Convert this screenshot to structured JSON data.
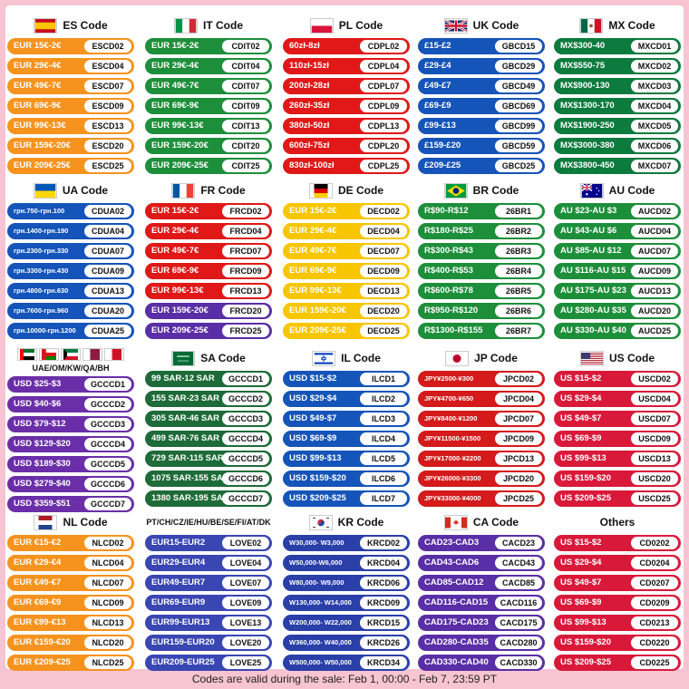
{
  "footer": "Codes are valid during the sale: Feb 1, 00:00 - Feb 7, 23:59 PT",
  "regions": [
    {
      "id": "es",
      "title": "ES Code",
      "color": "#f6931e",
      "flag": "flag-spain-icon",
      "rows": [
        [
          "EUR 15€-2€",
          "ESCD02"
        ],
        [
          "EUR 29€-4€",
          "ESCD04"
        ],
        [
          "EUR 49€-7€",
          "ESCD07"
        ],
        [
          "EUR 69€-9€",
          "ESCD09"
        ],
        [
          "EUR 99€-13€",
          "ESCD13"
        ],
        [
          "EUR 159€-20€",
          "ESCD20"
        ],
        [
          "EUR 209€-25€",
          "ESCD25"
        ]
      ]
    },
    {
      "id": "it",
      "title": "IT Code",
      "color": "#1d8f3a",
      "flag": "flag-italy-icon",
      "rows": [
        [
          "EUR 15€-2€",
          "CDIT02"
        ],
        [
          "EUR 29€-4€",
          "CDIT04"
        ],
        [
          "EUR 49€-7€",
          "CDIT07"
        ],
        [
          "EUR 69€-9€",
          "CDIT09"
        ],
        [
          "EUR 99€-13€",
          "CDIT13"
        ],
        [
          "EUR 159€-20€",
          "CDIT20"
        ],
        [
          "EUR 209€-25€",
          "CDIT25"
        ]
      ]
    },
    {
      "id": "pl",
      "title": "PL Code",
      "color": "#e01818",
      "flag": "flag-poland-icon",
      "rows": [
        [
          "60zł-8zł",
          "CDPL02"
        ],
        [
          "110zł-15zł",
          "CDPL04"
        ],
        [
          "200zł-28zł",
          "CDPL07"
        ],
        [
          "260zł-35zł",
          "CDPL09"
        ],
        [
          "380zł-50zł",
          "CDPL13"
        ],
        [
          "600zł-75zł",
          "CDPL20"
        ],
        [
          "830zł-100zł",
          "CDPL25"
        ]
      ]
    },
    {
      "id": "uk",
      "title": "UK Code",
      "color": "#1554b8",
      "flag": "flag-uk-icon",
      "rows": [
        [
          "£15-£2",
          "GBCD15"
        ],
        [
          "£29-£4",
          "GBCD29"
        ],
        [
          "£49-£7",
          "GBCD49"
        ],
        [
          "£69-£9",
          "GBCD69"
        ],
        [
          "£99-£13",
          "GBCD99"
        ],
        [
          "£159-£20",
          "GBCD59"
        ],
        [
          "£209-£25",
          "GBCD25"
        ]
      ]
    },
    {
      "id": "mx",
      "title": "MX Code",
      "color": "#0d7a3e",
      "flag": "flag-mexico-icon",
      "rows": [
        [
          "MX$300-40",
          "MXCD01"
        ],
        [
          "MX$550-75",
          "MXCD02"
        ],
        [
          "MX$900-130",
          "MXCD03"
        ],
        [
          "MX$1300-170",
          "MXCD04"
        ],
        [
          "MX$1900-250",
          "MXCD05"
        ],
        [
          "MX$3000-380",
          "MXCD06"
        ],
        [
          "MX$3800-450",
          "MXCD07"
        ]
      ]
    },
    {
      "id": "ua",
      "title": "UA Code",
      "color": "#1554b8",
      "flag": "flag-ukraine-icon",
      "rows": [
        [
          "грн.750-грн.100",
          "CDUA02"
        ],
        [
          "грн.1400-грн.190",
          "CDUA04"
        ],
        [
          "грн.2300-грн.330",
          "CDUA07"
        ],
        [
          "грн.3300-грн.430",
          "CDUA09"
        ],
        [
          "грн.4800-грн.630",
          "CDUA13"
        ],
        [
          "грн.7600-грн.960",
          "CDUA20"
        ],
        [
          "грн.10000-грн.1200",
          "CDUA25"
        ]
      ],
      "tiny": true
    },
    {
      "id": "fr",
      "title": "FR Code",
      "color": "#e01818",
      "flag": "flag-france-icon",
      "rows": [
        [
          "EUR 15€-2€",
          "FRCD02"
        ],
        [
          "EUR 29€-4€",
          "FRCD04"
        ],
        [
          "EUR 49€-7€",
          "FRCD07"
        ],
        [
          "EUR 69€-9€",
          "FRCD09"
        ],
        [
          "EUR 99€-13€",
          "FRCD13"
        ],
        [
          "EUR 159€-20€",
          "FRCD20"
        ],
        [
          "EUR 209€-25€",
          "FRCD25"
        ]
      ],
      "colors": [
        "#e01818",
        "#e01818",
        "#e01818",
        "#e01818",
        "#e01818",
        "#5a2ea6",
        "#5a2ea6"
      ]
    },
    {
      "id": "de",
      "title": "DE Code",
      "color": "#f7c600",
      "flag": "flag-germany-icon",
      "rows": [
        [
          "EUR 15€-2€",
          "DECD02"
        ],
        [
          "EUR 29€-4€",
          "DECD04"
        ],
        [
          "EUR 49€-7€",
          "DECD07"
        ],
        [
          "EUR 69€-9€",
          "DECD09"
        ],
        [
          "EUR 99€-13€",
          "DECD13"
        ],
        [
          "EUR 159€-20€",
          "DECD20"
        ],
        [
          "EUR 209€-25€",
          "DECD25"
        ]
      ]
    },
    {
      "id": "br",
      "title": "BR Code",
      "color": "#1d8f3a",
      "flag": "flag-brazil-icon",
      "rows": [
        [
          "R$90-R$12",
          "26BR1"
        ],
        [
          "R$180-R$25",
          "26BR2"
        ],
        [
          "R$300-R$43",
          "26BR3"
        ],
        [
          "R$400-R$53",
          "26BR4"
        ],
        [
          "R$600-R$78",
          "26BR5"
        ],
        [
          "R$950-R$120",
          "26BR6"
        ],
        [
          "R$1300-R$155",
          "26BR7"
        ]
      ]
    },
    {
      "id": "au",
      "title": "AU Code",
      "color": "#1d8f3a",
      "flag": "flag-australia-icon",
      "rows": [
        [
          "AU $23-AU $3",
          "AUCD02"
        ],
        [
          "AU $43-AU $6",
          "AUCD04"
        ],
        [
          "AU $85-AU $12",
          "AUCD07"
        ],
        [
          "AU $116-AU $15",
          "AUCD09"
        ],
        [
          "AU $175-AU $23",
          "AUCD13"
        ],
        [
          "AU $280-AU $35",
          "AUCD20"
        ],
        [
          "AU $330-AU $40",
          "AUCD25"
        ]
      ]
    },
    {
      "id": "gulf",
      "title": "UAE/OM/KW/QA/BH",
      "color": "#6a2fa8",
      "flag": "flag-gulf-icons",
      "rows": [
        [
          "USD $25-$3",
          "GCCCD1"
        ],
        [
          "USD $40-$6",
          "GCCCD2"
        ],
        [
          "USD $79-$12",
          "GCCCD3"
        ],
        [
          "USD $129-$20",
          "GCCCD4"
        ],
        [
          "USD $189-$30",
          "GCCCD5"
        ],
        [
          "USD $279-$40",
          "GCCCD6"
        ],
        [
          "USD $359-$51",
          "GCCCD7"
        ]
      ]
    },
    {
      "id": "sa",
      "title": "SA Code",
      "color": "#1d6b38",
      "flag": "flag-saudi-icon",
      "rows": [
        [
          "99 SAR-12 SAR",
          "GCCCD1"
        ],
        [
          "155 SAR-23 SAR",
          "GCCCD2"
        ],
        [
          "305 SAR-46 SAR",
          "GCCCD3"
        ],
        [
          "499 SAR-76 SAR",
          "GCCCD4"
        ],
        [
          "729 SAR-115 SAR",
          "GCCCD5"
        ],
        [
          "1075 SAR-155 SAR",
          "GCCCD6"
        ],
        [
          "1380 SAR-195 SAR",
          "GCCCD7"
        ]
      ]
    },
    {
      "id": "il",
      "title": "IL Code",
      "color": "#1554b8",
      "flag": "flag-israel-icon",
      "rows": [
        [
          "USD $15-$2",
          "ILCD1"
        ],
        [
          "USD $29-$4",
          "ILCD2"
        ],
        [
          "USD $49-$7",
          "ILCD3"
        ],
        [
          "USD $69-$9",
          "ILCD4"
        ],
        [
          "USD $99-$13",
          "ILCD5"
        ],
        [
          "USD $159-$20",
          "ILCD6"
        ],
        [
          "USD $209-$25",
          "ILCD7"
        ]
      ]
    },
    {
      "id": "jp",
      "title": "JP Code",
      "color": "#d41a1a",
      "flag": "flag-japan-icon",
      "rows": [
        [
          "JPY¥2500-¥300",
          "JPCD02"
        ],
        [
          "JPY¥4700-¥650",
          "JPCD04"
        ],
        [
          "JPY¥8400-¥1200",
          "JPCD07"
        ],
        [
          "JPY¥11500-¥1500",
          "JPCD09"
        ],
        [
          "JPY¥17000-¥2200",
          "JPCD13"
        ],
        [
          "JPY¥26000-¥3300",
          "JPCD20"
        ],
        [
          "JPY¥33000-¥4000",
          "JPCD25"
        ]
      ],
      "tiny": true
    },
    {
      "id": "us",
      "title": "US Code",
      "color": "#d9193a",
      "flag": "flag-usa-icon",
      "rows": [
        [
          "US $15-$2",
          "USCD02"
        ],
        [
          "US $29-$4",
          "USCD04"
        ],
        [
          "US $49-$7",
          "USCD07"
        ],
        [
          "US $69-$9",
          "USCD09"
        ],
        [
          "US $99-$13",
          "USCD13"
        ],
        [
          "US $159-$20",
          "USCD20"
        ],
        [
          "US $209-$25",
          "USCD25"
        ]
      ]
    },
    {
      "id": "nl",
      "title": "NL Code",
      "color": "#f6931e",
      "flag": "flag-netherlands-icon",
      "rows": [
        [
          "EUR €15-€2",
          "NLCD02"
        ],
        [
          "EUR €29-€4",
          "NLCD04"
        ],
        [
          "EUR €49-€7",
          "NLCD07"
        ],
        [
          "EUR €69-€9",
          "NLCD09"
        ],
        [
          "EUR €99-€13",
          "NLCD13"
        ],
        [
          "EUR €159-€20",
          "NLCD20"
        ],
        [
          "EUR €209-€25",
          "NLCD25"
        ]
      ]
    },
    {
      "id": "multi",
      "title": "PT/CH/CZ/IE/HU/BE/SE/FI/AT/DK",
      "color": "#3a46b2",
      "flag": "",
      "rows": [
        [
          "EUR15-EUR2",
          "LOVE02"
        ],
        [
          "EUR29-EUR4",
          "LOVE04"
        ],
        [
          "EUR49-EUR7",
          "LOVE07"
        ],
        [
          "EUR69-EUR9",
          "LOVE09"
        ],
        [
          "EUR99-EUR13",
          "LOVE13"
        ],
        [
          "EUR159-EUR20",
          "LOVE20"
        ],
        [
          "EUR209-EUR25",
          "LOVE25"
        ]
      ]
    },
    {
      "id": "kr",
      "title": "KR Code",
      "color": "#2a3fa8",
      "flag": "flag-korea-icon",
      "rows": [
        [
          "W30,000- W3,000",
          "KRCD02"
        ],
        [
          "W50,000-W6,000",
          "KRCD04"
        ],
        [
          "W80,000- W9,000",
          "KRCD06"
        ],
        [
          "W130,000- W14,000",
          "KRCD09"
        ],
        [
          "W200,000- W22,000",
          "KRCD15"
        ],
        [
          "W360,000- W40,000",
          "KRCD26"
        ],
        [
          "W500,000- W50,000",
          "KRCD34"
        ]
      ],
      "tiny": true
    },
    {
      "id": "ca",
      "title": "CA Code",
      "color": "#5a2ea6",
      "flag": "flag-canada-icon",
      "rows": [
        [
          "CAD23-CAD3",
          "CACD23"
        ],
        [
          "CAD43-CAD6",
          "CACD43"
        ],
        [
          "CAD85-CAD12",
          "CACD85"
        ],
        [
          "CAD116-CAD15",
          "CACD116"
        ],
        [
          "CAD175-CAD23",
          "CACD175"
        ],
        [
          "CAD280-CAD35",
          "CACD280"
        ],
        [
          "CAD330-CAD40",
          "CACD330"
        ]
      ]
    },
    {
      "id": "others",
      "title": "Others",
      "color": "#d9193a",
      "flag": "",
      "rows": [
        [
          "US $15-$2",
          "CD0202"
        ],
        [
          "US $29-$4",
          "CD0204"
        ],
        [
          "US $49-$7",
          "CD0207"
        ],
        [
          "US $69-$9",
          "CD0209"
        ],
        [
          "US $99-$13",
          "CD0213"
        ],
        [
          "US $159-$20",
          "CD0220"
        ],
        [
          "US $209-$25",
          "CD0225"
        ]
      ]
    }
  ]
}
